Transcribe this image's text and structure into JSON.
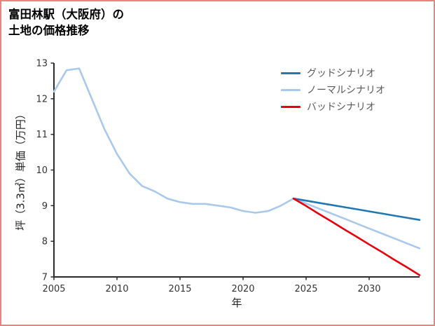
{
  "page": {
    "title_line1": "富田林駅（大阪府）の",
    "title_line2": "土地の価格推移",
    "border_color": "#f08080",
    "background": "#ffffff"
  },
  "chart_data": {
    "type": "line",
    "title": "富田林駅（大阪府）の土地の価格推移",
    "xlabel": "年",
    "ylabel": "坪（3.3㎡）単価（万円）",
    "xlim": [
      2005,
      2034
    ],
    "ylim": [
      7,
      13
    ],
    "xticks": [
      "2005",
      "2010",
      "2015",
      "2020",
      "2025",
      "2030"
    ],
    "yticks": [
      "7",
      "8",
      "9",
      "10",
      "11",
      "12",
      "13"
    ],
    "grid": false,
    "legend_position": "top-right",
    "axis_color": "#2b2b2b",
    "tick_label_color": "#333333",
    "legend_text_color": "#595959",
    "series": [
      {
        "name": "グッドシナリオ",
        "color": "#1f77b4",
        "x": [
          2024,
          2025,
          2026,
          2027,
          2028,
          2029,
          2030,
          2031,
          2032,
          2033,
          2034
        ],
        "y": [
          9.2,
          9.14,
          9.08,
          9.02,
          8.96,
          8.9,
          8.84,
          8.78,
          8.72,
          8.66,
          8.6
        ]
      },
      {
        "name": "ノーマルシナリオ",
        "color": "#a9c9ea",
        "x": [
          2005,
          2006,
          2007,
          2008,
          2009,
          2010,
          2011,
          2012,
          2013,
          2014,
          2015,
          2016,
          2017,
          2018,
          2019,
          2020,
          2021,
          2022,
          2023,
          2024,
          2025,
          2026,
          2027,
          2028,
          2029,
          2030,
          2031,
          2032,
          2033,
          2034
        ],
        "y": [
          12.2,
          12.8,
          12.85,
          12.0,
          11.15,
          10.45,
          9.9,
          9.55,
          9.4,
          9.2,
          9.1,
          9.05,
          9.05,
          9.0,
          8.95,
          8.85,
          8.8,
          8.85,
          9.0,
          9.2,
          9.06,
          8.92,
          8.78,
          8.64,
          8.5,
          8.36,
          8.22,
          8.08,
          7.94,
          7.8
        ]
      },
      {
        "name": "バッドシナリオ",
        "color": "#e8000b",
        "x": [
          2024,
          2025,
          2026,
          2027,
          2028,
          2029,
          2030,
          2031,
          2032,
          2033,
          2034
        ],
        "y": [
          9.2,
          8.99,
          8.77,
          8.56,
          8.34,
          8.13,
          7.91,
          7.7,
          7.48,
          7.27,
          7.05
        ]
      }
    ]
  }
}
